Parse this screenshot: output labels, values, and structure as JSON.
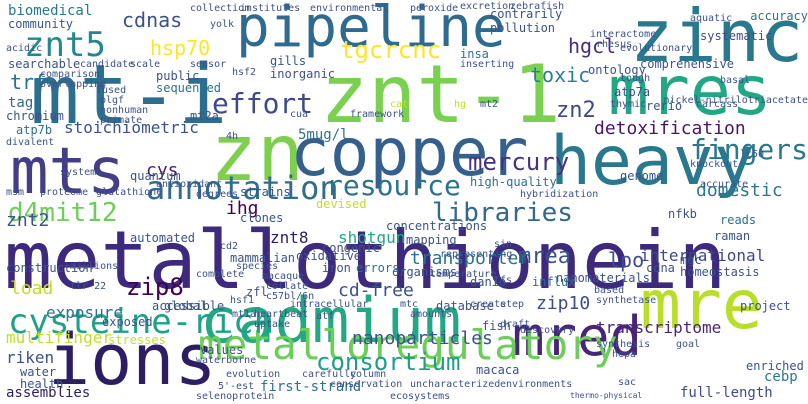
{
  "words": [
    {
      "text": "metallothionein",
      "color": "#3e2a7c"
    },
    {
      "text": "cadmium",
      "color": "#23a883"
    },
    {
      "text": "zn",
      "color": "#7fcf4f"
    },
    {
      "text": "mt-i",
      "color": "#2c6e8e"
    },
    {
      "text": "znt-1",
      "color": "#7ad151"
    },
    {
      "text": "copper",
      "color": "#355f8d"
    },
    {
      "text": "heavy",
      "color": "#2a788e"
    },
    {
      "text": "zinc",
      "color": "#2a788e"
    },
    {
      "text": "pipeline",
      "color": "#2f6b8e"
    },
    {
      "text": "mres",
      "color": "#22a785"
    },
    {
      "text": "mre",
      "color": "#b8de29"
    },
    {
      "text": "ions",
      "color": "#2d1e63"
    },
    {
      "text": "mts",
      "color": "#433e85"
    },
    {
      "text": "mred",
      "color": "#482677"
    },
    {
      "text": "metalloregulatory",
      "color": "#6ccd5a"
    },
    {
      "text": "annotation",
      "color": "#2f6c8e"
    },
    {
      "text": "resource",
      "color": "#2c728e"
    },
    {
      "text": "znt5",
      "color": "#24878e"
    },
    {
      "text": "cysteine-rich",
      "color": "#1fa088"
    },
    {
      "text": "effort",
      "color": "#3e4a89"
    },
    {
      "text": "tgcrcnc",
      "color": "#fde725"
    },
    {
      "text": "hsp70",
      "color": "#fde725"
    },
    {
      "text": "cdnas",
      "color": "#3b528b"
    },
    {
      "text": "d4mit12",
      "color": "#6ccd5a"
    },
    {
      "text": "libraries",
      "color": "#31688e"
    },
    {
      "text": "fingers",
      "color": "#2a788e"
    },
    {
      "text": "mercury",
      "color": "#46327e"
    },
    {
      "text": "detoxification",
      "color": "#481668"
    },
    {
      "text": "zip8",
      "color": "#440154"
    },
    {
      "text": "toxic",
      "color": "#26828e"
    },
    {
      "text": "hgcl",
      "color": "#472d7b"
    },
    {
      "text": "zn2",
      "color": "#3e4989"
    },
    {
      "text": "consortium",
      "color": "#1f9e89"
    },
    {
      "text": "nanoparticles",
      "color": "#3b528b"
    },
    {
      "text": "zip10",
      "color": "#3e4c8a"
    },
    {
      "text": "mrea",
      "color": "#3b528b"
    },
    {
      "text": "lpo",
      "color": "#3e4c8a"
    },
    {
      "text": "transporter",
      "color": "#2c728e"
    },
    {
      "text": "international",
      "color": "#3f4788"
    },
    {
      "text": "ihg",
      "color": "#440154"
    },
    {
      "text": "cys",
      "color": "#481f70"
    },
    {
      "text": "cd-free",
      "color": "#3b528b"
    },
    {
      "text": "multifinger",
      "color": "#c0df25"
    },
    {
      "text": "exposure",
      "color": "#2c728e"
    },
    {
      "text": "riken",
      "color": "#3b528b"
    },
    {
      "text": "load",
      "color": "#c2df23"
    },
    {
      "text": "znt8",
      "color": "#2d1e63"
    },
    {
      "text": "trf",
      "color": "#2c728e"
    },
    {
      "text": "biomedical",
      "color": "#2a778e"
    },
    {
      "text": "community",
      "color": "#39558c"
    },
    {
      "text": "tags",
      "color": "#31688e"
    },
    {
      "text": "stoichiometric",
      "color": "#3b528b"
    },
    {
      "text": "5mug/l",
      "color": "#2c728e"
    },
    {
      "text": "shotgun",
      "color": "#22a785"
    },
    {
      "text": "transcriptome",
      "color": "#482677"
    },
    {
      "text": "first-strand",
      "color": "#2c728e"
    },
    {
      "text": "full-length",
      "color": "#3e4a89"
    },
    {
      "text": "assemblies",
      "color": "#2d1e63"
    },
    {
      "text": "high-quality",
      "color": "#2d708e"
    },
    {
      "text": "contrarily",
      "color": "#3b528b"
    },
    {
      "text": "pollution",
      "color": "#3b528b"
    },
    {
      "text": "systematic",
      "color": "#3e4c8a"
    },
    {
      "text": "accuracy",
      "color": "#2c728e"
    },
    {
      "text": "insa",
      "color": "#2c728e"
    },
    {
      "text": "gills",
      "color": "#3b528b"
    },
    {
      "text": "public",
      "color": "#3b528b"
    },
    {
      "text": "sequenced",
      "color": "#2c728e"
    },
    {
      "text": "atp7b",
      "color": "#2c728e"
    },
    {
      "text": "atp7a",
      "color": "#3b528b"
    },
    {
      "text": "mt2a",
      "color": "#3b528b"
    },
    {
      "text": "ontology",
      "color": "#3b528b"
    },
    {
      "text": "comprehensive",
      "color": "#3b528b"
    },
    {
      "text": "domestic",
      "color": "#2a788e"
    },
    {
      "text": "cebp",
      "color": "#2a788e"
    },
    {
      "text": "raman",
      "color": "#3b528b"
    },
    {
      "text": "reads",
      "color": "#2c728e"
    },
    {
      "text": "genome",
      "color": "#3b528b"
    },
    {
      "text": "inorganic",
      "color": "#3b528b"
    },
    {
      "text": "chromium",
      "color": "#3b528b"
    },
    {
      "text": "searchable",
      "color": "#3b528b"
    },
    {
      "text": "quantum",
      "color": "#3b528b"
    },
    {
      "text": "strains",
      "color": "#3b528b"
    },
    {
      "text": "clones",
      "color": "#3b528b"
    },
    {
      "text": "congenic",
      "color": "#3b528b"
    },
    {
      "text": "iron",
      "color": "#3b528b"
    },
    {
      "text": "oxidative",
      "color": "#3b528b"
    },
    {
      "text": "mammalian",
      "color": "#3b528b"
    },
    {
      "text": "concentrations",
      "color": "#3b528b"
    },
    {
      "text": "mapping",
      "color": "#3b528b"
    },
    {
      "text": "organisms",
      "color": "#3b528b"
    },
    {
      "text": "errors",
      "color": "#2c728e"
    },
    {
      "text": "influx",
      "color": "#2c728e"
    },
    {
      "text": "nanomaterials",
      "color": "#3b528b"
    },
    {
      "text": "homeostasis",
      "color": "#3b528b"
    },
    {
      "text": "stresses",
      "color": "#c0df25"
    },
    {
      "text": "construction",
      "color": "#3b528b"
    },
    {
      "text": "global",
      "color": "#3b528b"
    },
    {
      "text": "values",
      "color": "#3b528b"
    },
    {
      "text": "water",
      "color": "#3b528b"
    },
    {
      "text": "health",
      "color": "#3b528b"
    },
    {
      "text": "macaca",
      "color": "#3b528b"
    },
    {
      "text": "database",
      "color": "#3b528b"
    },
    {
      "text": "mgc",
      "color": "#3b528b"
    },
    {
      "text": "cdna",
      "color": "#3b528b"
    },
    {
      "text": "nfkb",
      "color": "#3b528b"
    },
    {
      "text": "fish",
      "color": "#3b528b"
    },
    {
      "text": "danio",
      "color": "#3b528b"
    },
    {
      "text": "rerio",
      "color": "#3b528b"
    },
    {
      "text": "project",
      "color": "#3b528b"
    },
    {
      "text": "enriched",
      "color": "#3b528b"
    },
    {
      "text": "devised",
      "color": "#c0df25"
    },
    {
      "text": "exposed",
      "color": "#3b528b"
    },
    {
      "text": "accessible",
      "color": "#3b528b"
    },
    {
      "text": "automated",
      "color": "#3b528b"
    },
    {
      "text": "zfl",
      "color": "#3b528b"
    },
    {
      "text": "hsf2",
      "color": "#3b528b"
    },
    {
      "text": "collection",
      "color": "#3b528b"
    },
    {
      "text": "institutes",
      "color": "#3b528b"
    },
    {
      "text": "environmental",
      "color": "#3b528b"
    },
    {
      "text": "yolk",
      "color": "#3b528b"
    },
    {
      "text": "sensor",
      "color": "#3b528b"
    },
    {
      "text": "evolutionary",
      "color": "#3b528b"
    },
    {
      "text": "aquatic",
      "color": "#3b528b"
    },
    {
      "text": "basal",
      "color": "#3b528b"
    },
    {
      "text": "carcass",
      "color": "#3b528b"
    },
    {
      "text": "thymic",
      "color": "#3b528b"
    },
    {
      "text": "mt2",
      "color": "#3b528b"
    },
    {
      "text": "hg",
      "color": "#c0df25"
    },
    {
      "text": "cat",
      "color": "#c0df25"
    },
    {
      "text": "4h",
      "color": "#3b528b"
    },
    {
      "text": "divalent",
      "color": "#3b528b"
    },
    {
      "text": "systems",
      "color": "#3b528b"
    },
    {
      "text": "proteome",
      "color": "#3b528b"
    },
    {
      "text": "glutathione",
      "color": "#3b528b"
    },
    {
      "text": "antioxidant",
      "color": "#3b528b"
    },
    {
      "text": "degrees",
      "color": "#3b528b"
    },
    {
      "text": "complete",
      "color": "#3b528b"
    },
    {
      "text": "hybridization",
      "color": "#3b528b"
    },
    {
      "text": "temperature",
      "color": "#3b528b"
    },
    {
      "text": "representing",
      "color": "#3b528b"
    },
    {
      "text": "create",
      "color": "#3b528b"
    },
    {
      "text": "amounts",
      "color": "#3b528b"
    },
    {
      "text": "tfs",
      "color": "#3b528b"
    },
    {
      "text": "step",
      "color": "#3b528b"
    },
    {
      "text": "draft",
      "color": "#3b528b"
    },
    {
      "text": "discovery",
      "color": "#3b528b"
    },
    {
      "text": "synthetase",
      "color": "#3b528b"
    },
    {
      "text": "synthesis",
      "color": "#3b528b"
    },
    {
      "text": "hepa",
      "color": "#3b528b"
    },
    {
      "text": "goal",
      "color": "#3b528b"
    },
    {
      "text": "based",
      "color": "#3b528b"
    },
    {
      "text": "knockout",
      "color": "#3b528b"
    },
    {
      "text": "accurate",
      "color": "#3b528b"
    },
    {
      "text": "lc50",
      "color": "#3b528b"
    },
    {
      "text": "nickel-nitrilotriacetate",
      "color": "#3b528b"
    },
    {
      "text": "interactome",
      "color": "#3b528b"
    },
    {
      "text": "rhesus",
      "color": "#3b528b"
    },
    {
      "text": "zebrafish",
      "color": "#3b528b"
    },
    {
      "text": "excretion",
      "color": "#3b528b"
    },
    {
      "text": "peroxide",
      "color": "#3b528b"
    },
    {
      "text": "inserting",
      "color": "#3b528b"
    },
    {
      "text": "framework",
      "color": "#3b528b"
    },
    {
      "text": "plgf",
      "color": "#3b528b"
    },
    {
      "text": "nonhuman",
      "color": "#3b528b"
    },
    {
      "text": "primate",
      "color": "#3b528b"
    },
    {
      "text": "fused",
      "color": "#3b528b"
    },
    {
      "text": "scale",
      "color": "#3b528b"
    },
    {
      "text": "candidate",
      "color": "#3b528b"
    },
    {
      "text": "comparison",
      "color": "#3b528b"
    },
    {
      "text": "overlapping",
      "color": "#3b528b"
    },
    {
      "text": "acidic",
      "color": "#3b528b"
    },
    {
      "text": "species",
      "color": "#3b528b"
    },
    {
      "text": "macaque",
      "color": "#3b528b"
    },
    {
      "text": "collate",
      "color": "#3b528b"
    },
    {
      "text": "c57bl/6n",
      "color": "#3b528b"
    },
    {
      "text": "intracellular",
      "color": "#3b528b"
    },
    {
      "text": "hsf1",
      "color": "#3b528b"
    },
    {
      "text": "mt1a",
      "color": "#3b528b"
    },
    {
      "text": "heartbeat",
      "color": "#3b528b"
    },
    {
      "text": "uptake",
      "color": "#3b528b"
    },
    {
      "text": "carefully",
      "color": "#3b528b"
    },
    {
      "text": "column",
      "color": "#3b528b"
    },
    {
      "text": "conservation",
      "color": "#3b528b"
    },
    {
      "text": "uncharacterized",
      "color": "#3b528b"
    },
    {
      "text": "environments",
      "color": "#3b528b"
    },
    {
      "text": "ecosystems",
      "color": "#3b528b"
    },
    {
      "text": "thermo-physical",
      "color": "#3b528b"
    },
    {
      "text": "sac",
      "color": "#3b528b"
    },
    {
      "text": "evolution",
      "color": "#3b528b"
    },
    {
      "text": "waterborne",
      "color": "#3b528b"
    },
    {
      "text": "5'-est",
      "color": "#3b528b"
    },
    {
      "text": "selenoprotein",
      "color": "#3b528b"
    },
    {
      "text": "millions",
      "color": "#3b528b"
    },
    {
      "text": "tlr-22",
      "color": "#3b528b"
    },
    {
      "text": "msm",
      "color": "#3b528b"
    },
    {
      "text": "cd2",
      "color": "#3b528b"
    },
    {
      "text": "tough",
      "color": "#3b528b"
    },
    {
      "text": "mtc",
      "color": "#3b528b"
    },
    {
      "text": "atf",
      "color": "#3b528b"
    },
    {
      "text": "cua",
      "color": "#3b528b"
    },
    {
      "text": "sin",
      "color": "#3b528b"
    },
    {
      "text": "znt2",
      "color": "#3b528b"
    }
  ]
}
